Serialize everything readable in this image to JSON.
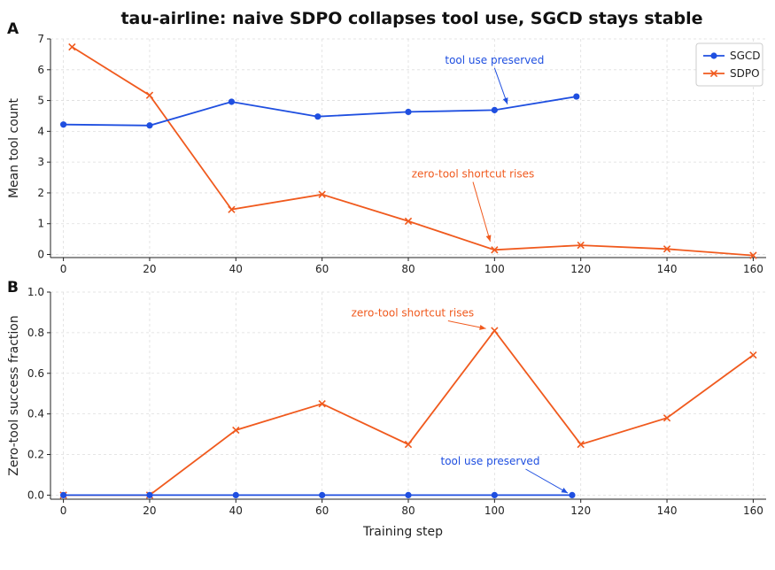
{
  "colors": {
    "sgcd": "#1f4fe0",
    "sdpo": "#f05a1e",
    "grid": "#dddddd"
  },
  "chart_data": [
    {
      "type": "line",
      "panel": "A",
      "title": "tau-airline: naive SDPO collapses tool use, SGCD stays stable",
      "xlabel": "",
      "ylabel": "Mean tool count",
      "xlim": [
        -3,
        163
      ],
      "ylim": [
        -0.1,
        7
      ],
      "xticks": [
        0,
        20,
        40,
        60,
        80,
        100,
        120,
        140,
        160
      ],
      "yticks": [
        0,
        1,
        2,
        3,
        4,
        5,
        6,
        7
      ],
      "grid": true,
      "legend": "top-right",
      "series": [
        {
          "name": "SGCD",
          "marker": "o",
          "x": [
            0,
            20,
            39,
            59,
            80,
            100,
            119
          ],
          "y": [
            4.22,
            4.19,
            4.96,
            4.48,
            4.63,
            4.69,
            5.13
          ]
        },
        {
          "name": "SDPO",
          "marker": "x",
          "x": [
            2,
            20,
            39,
            60,
            80,
            100,
            120,
            140,
            160
          ],
          "y": [
            6.74,
            5.17,
            1.46,
            1.95,
            1.08,
            0.15,
            0.3,
            0.18,
            -0.03
          ]
        }
      ],
      "annotations": [
        {
          "text": "tool use preserved",
          "series": "SGCD",
          "text_x": 100,
          "text_y": 6.2,
          "arrow_x": 103,
          "arrow_y": 4.88
        },
        {
          "text": "zero-tool shortcut rises",
          "series": "SDPO",
          "text_x": 95,
          "text_y": 2.5,
          "arrow_x": 99,
          "arrow_y": 0.42
        }
      ]
    },
    {
      "type": "line",
      "panel": "B",
      "xlabel": "Training step",
      "ylabel": "Zero-tool success fraction",
      "xlim": [
        -3,
        163
      ],
      "ylim": [
        -0.02,
        1.0
      ],
      "xticks": [
        0,
        20,
        40,
        60,
        80,
        100,
        120,
        140,
        160
      ],
      "yticks": [
        0.0,
        0.2,
        0.4,
        0.6,
        0.8,
        1.0
      ],
      "grid": true,
      "series": [
        {
          "name": "SGCD",
          "marker": "o",
          "x": [
            0,
            20,
            40,
            60,
            80,
            100,
            118
          ],
          "y": [
            0,
            0,
            0,
            0,
            0,
            0,
            0
          ]
        },
        {
          "name": "SDPO",
          "marker": "x",
          "x": [
            0,
            20,
            40,
            60,
            80,
            100,
            120,
            140,
            160
          ],
          "y": [
            0,
            0,
            0.32,
            0.45,
            0.25,
            0.81,
            0.25,
            0.38,
            0.69
          ]
        }
      ],
      "annotations": [
        {
          "text": "zero-tool shortcut rises",
          "series": "SDPO",
          "text_x": 81,
          "text_y": 0.88,
          "arrow_x": 98,
          "arrow_y": 0.82
        },
        {
          "text": "tool use preserved",
          "series": "SGCD",
          "text_x": 99,
          "text_y": 0.15,
          "arrow_x": 117,
          "arrow_y": 0.01
        }
      ]
    }
  ]
}
